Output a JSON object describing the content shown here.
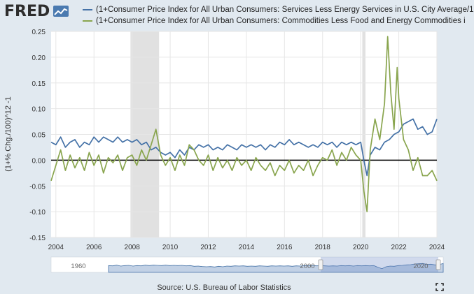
{
  "header": {
    "logo_text": "FRED",
    "logo_icon": "chart-line-icon"
  },
  "colors": {
    "background": "#e1e9f0",
    "plot_background": "#ffffff",
    "series_1": "#4572a7",
    "series_2": "#89a54e",
    "recession_shade": "#e1e1e1",
    "zero_line": "#000000",
    "navigator_fill": "#c2d1e5",
    "navigator_line": "#4572a7"
  },
  "source": "Source: U.S. Bureau of Labor Statistics",
  "navigator": {
    "labels": [
      "1960",
      "2000",
      "2020"
    ]
  },
  "chart_data": {
    "type": "line",
    "xlabel": "",
    "ylabel": "(1+% Chg./100)^12 -1",
    "ylim": [
      -0.15,
      0.25
    ],
    "yticks": [
      -0.15,
      -0.1,
      -0.05,
      0.0,
      0.05,
      0.1,
      0.15,
      0.2,
      0.25
    ],
    "ytick_labels": [
      "-0.15",
      "-0.10",
      "-0.05",
      "0.00",
      "0.05",
      "0.10",
      "0.15",
      "0.20",
      "0.25"
    ],
    "xlim": [
      2003.75,
      2024.0
    ],
    "xticks": [
      2004,
      2006,
      2008,
      2010,
      2012,
      2014,
      2016,
      2018,
      2020,
      2022,
      2024
    ],
    "xtick_labels": [
      "2004",
      "2006",
      "2008",
      "2010",
      "2012",
      "2014",
      "2016",
      "2018",
      "2020",
      "2022",
      "2024"
    ],
    "grid": true,
    "legend_position": "top",
    "recessions": [
      [
        2007.917,
        2009.417
      ],
      [
        2020.083,
        2020.25
      ]
    ],
    "series": [
      {
        "name": "(1+Consumer Price Index for All Urban Consumers: Services Less Energy Services in U.S. City Average/1",
        "color": "#4572a7",
        "x": [
          2003.75,
          2004.0,
          2004.25,
          2004.5,
          2004.75,
          2005.0,
          2005.25,
          2005.5,
          2005.75,
          2006.0,
          2006.25,
          2006.5,
          2006.75,
          2007.0,
          2007.25,
          2007.5,
          2007.75,
          2008.0,
          2008.25,
          2008.5,
          2008.75,
          2009.0,
          2009.25,
          2009.5,
          2009.75,
          2010.0,
          2010.25,
          2010.5,
          2010.75,
          2011.0,
          2011.25,
          2011.5,
          2011.75,
          2012.0,
          2012.25,
          2012.5,
          2012.75,
          2013.0,
          2013.25,
          2013.5,
          2013.75,
          2014.0,
          2014.25,
          2014.5,
          2014.75,
          2015.0,
          2015.25,
          2015.5,
          2015.75,
          2016.0,
          2016.25,
          2016.5,
          2016.75,
          2017.0,
          2017.25,
          2017.5,
          2017.75,
          2018.0,
          2018.25,
          2018.5,
          2018.75,
          2019.0,
          2019.25,
          2019.5,
          2019.75,
          2020.0,
          2020.167,
          2020.333,
          2020.5,
          2020.75,
          2021.0,
          2021.25,
          2021.5,
          2021.75,
          2022.0,
          2022.25,
          2022.5,
          2022.75,
          2023.0,
          2023.25,
          2023.5,
          2023.75,
          2024.0
        ],
        "values": [
          0.035,
          0.03,
          0.045,
          0.025,
          0.035,
          0.04,
          0.025,
          0.035,
          0.03,
          0.045,
          0.035,
          0.045,
          0.04,
          0.035,
          0.045,
          0.035,
          0.04,
          0.035,
          0.04,
          0.03,
          0.035,
          0.02,
          0.025,
          0.015,
          0.01,
          0.015,
          0.005,
          0.02,
          0.01,
          0.025,
          0.02,
          0.03,
          0.025,
          0.03,
          0.02,
          0.025,
          0.02,
          0.03,
          0.025,
          0.02,
          0.03,
          0.025,
          0.03,
          0.025,
          0.03,
          0.02,
          0.03,
          0.025,
          0.035,
          0.03,
          0.04,
          0.03,
          0.035,
          0.03,
          0.025,
          0.03,
          0.025,
          0.035,
          0.03,
          0.035,
          0.025,
          0.035,
          0.03,
          0.035,
          0.03,
          0.035,
          0.0,
          -0.03,
          0.01,
          0.025,
          0.02,
          0.035,
          0.04,
          0.05,
          0.055,
          0.07,
          0.075,
          0.08,
          0.06,
          0.065,
          0.05,
          0.055,
          0.08
        ]
      },
      {
        "name": "(1+Consumer Price Index for All Urban Consumers: Commodities Less Food and Energy Commodities i",
        "color": "#89a54e",
        "x": [
          2003.75,
          2004.0,
          2004.25,
          2004.5,
          2004.75,
          2005.0,
          2005.25,
          2005.5,
          2005.75,
          2006.0,
          2006.25,
          2006.5,
          2006.75,
          2007.0,
          2007.25,
          2007.5,
          2007.75,
          2008.0,
          2008.25,
          2008.5,
          2008.75,
          2009.0,
          2009.25,
          2009.5,
          2009.75,
          2010.0,
          2010.25,
          2010.5,
          2010.75,
          2011.0,
          2011.25,
          2011.5,
          2011.75,
          2012.0,
          2012.25,
          2012.5,
          2012.75,
          2013.0,
          2013.25,
          2013.5,
          2013.75,
          2014.0,
          2014.25,
          2014.5,
          2014.75,
          2015.0,
          2015.25,
          2015.5,
          2015.75,
          2016.0,
          2016.25,
          2016.5,
          2016.75,
          2017.0,
          2017.25,
          2017.5,
          2017.75,
          2018.0,
          2018.25,
          2018.5,
          2018.75,
          2019.0,
          2019.25,
          2019.5,
          2019.75,
          2020.0,
          2020.167,
          2020.333,
          2020.5,
          2020.75,
          2021.0,
          2021.25,
          2021.417,
          2021.583,
          2021.75,
          2021.917,
          2022.0,
          2022.25,
          2022.5,
          2022.75,
          2023.0,
          2023.25,
          2023.5,
          2023.75,
          2024.0
        ],
        "values": [
          -0.04,
          -0.01,
          0.02,
          -0.02,
          0.01,
          -0.015,
          0.005,
          -0.02,
          0.015,
          -0.01,
          0.01,
          -0.025,
          0.005,
          -0.005,
          0.01,
          -0.02,
          0.005,
          0.01,
          -0.01,
          0.02,
          0.0,
          0.03,
          0.06,
          0.01,
          -0.01,
          0.005,
          -0.02,
          0.01,
          -0.01,
          0.03,
          0.02,
          0.0,
          -0.01,
          0.01,
          -0.02,
          0.005,
          -0.015,
          0.0,
          -0.02,
          0.005,
          -0.01,
          0.0,
          -0.02,
          0.005,
          -0.01,
          -0.02,
          -0.005,
          -0.03,
          -0.01,
          -0.02,
          0.0,
          -0.025,
          -0.01,
          -0.02,
          0.0,
          -0.03,
          -0.01,
          0.005,
          0.0,
          0.02,
          -0.01,
          0.015,
          0.0,
          0.025,
          0.01,
          0.0,
          -0.06,
          -0.1,
          0.02,
          0.08,
          0.04,
          0.11,
          0.24,
          0.13,
          0.06,
          0.18,
          0.12,
          0.04,
          0.02,
          -0.02,
          0.005,
          -0.03,
          -0.03,
          -0.02,
          -0.04
        ]
      }
    ]
  }
}
